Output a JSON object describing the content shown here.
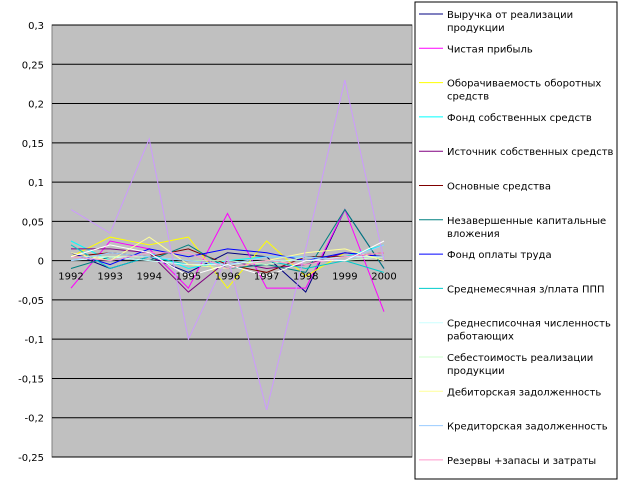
{
  "chart_data": {
    "type": "line",
    "title": "",
    "xlabel": "",
    "ylabel": "",
    "x": [
      "1992",
      "1993",
      "1994",
      "1995",
      "1996",
      "1997",
      "1998",
      "1999",
      "2000"
    ],
    "ylim": [
      -0.25,
      0.3
    ],
    "yticks": [
      "0,3",
      "0,25",
      "0,2",
      "0,15",
      "0,1",
      "0,05",
      "0",
      "-0,05",
      "-0,1",
      "-0,15",
      "-0,2",
      "-0,25"
    ],
    "ytick_values": [
      0.3,
      0.25,
      0.2,
      0.15,
      0.1,
      0.05,
      0,
      -0.05,
      -0.1,
      -0.15,
      -0.2,
      -0.25
    ],
    "grid": "horizontal",
    "plot_background": "#c0c0c0",
    "legend_position": "right",
    "series": [
      {
        "name": "Выручка от реализации продукции",
        "color": "#000080",
        "values": [
          0.01,
          -0.01,
          0.005,
          -0.015,
          0.01,
          0.005,
          -0.04,
          0.065,
          -0.01
        ]
      },
      {
        "name": "Чистая прибыль",
        "color": "#ff00ff",
        "values": [
          -0.035,
          0.025,
          0.015,
          -0.035,
          0.06,
          -0.035,
          -0.035,
          0.065,
          -0.065
        ]
      },
      {
        "name": "Оборачиваемость оборотных средств",
        "color": "#ffff00",
        "values": [
          0.005,
          0.03,
          0.02,
          0.03,
          -0.035,
          0.025,
          -0.02,
          0.01,
          0.005
        ]
      },
      {
        "name": "Фонд собственных средств",
        "color": "#00ffff",
        "values": [
          0.025,
          0.0,
          0.01,
          -0.01,
          0.0,
          0.005,
          0.005,
          0.005,
          0.02
        ]
      },
      {
        "name": "Источник собственных средств",
        "color": "#800080",
        "values": [
          0.015,
          0.015,
          0.01,
          -0.04,
          0.0,
          -0.01,
          -0.005,
          0.01,
          0.005
        ]
      },
      {
        "name": "Основные средства",
        "color": "#800000",
        "values": [
          0.005,
          0.01,
          0.005,
          0.015,
          -0.005,
          -0.015,
          0.005,
          0.005,
          0.01
        ]
      },
      {
        "name": "Незавершенные капитальные вложения",
        "color": "#008080",
        "values": [
          -0.01,
          0.005,
          0.0,
          0.02,
          -0.01,
          -0.005,
          -0.015,
          0.065,
          -0.01
        ]
      },
      {
        "name": "Фонд оплаты труда",
        "color": "#0000ff",
        "values": [
          0.01,
          -0.005,
          0.015,
          0.005,
          0.015,
          0.01,
          0.0,
          0.01,
          0.005
        ]
      },
      {
        "name": "Среднемесячная з/плата ППП",
        "color": "#00cccc",
        "values": [
          0.02,
          -0.01,
          0.005,
          -0.005,
          -0.01,
          0.0,
          -0.01,
          0.0,
          -0.015
        ]
      },
      {
        "name": "Среднесписочная численность работающих",
        "color": "#ccffff",
        "values": [
          0.0,
          0.005,
          0.0,
          -0.005,
          -0.005,
          0.0,
          0.0,
          0.005,
          0.005
        ]
      },
      {
        "name": "Себестоимость реализации продукции",
        "color": "#ccffcc",
        "values": [
          0.005,
          0.005,
          0.005,
          0.0,
          0.0,
          -0.005,
          0.005,
          0.0,
          0.005
        ]
      },
      {
        "name": "Дебиторская задолженность",
        "color": "#ffff99",
        "values": [
          0.01,
          0.0,
          0.03,
          -0.005,
          -0.01,
          0.0,
          0.01,
          0.015,
          0.0
        ]
      },
      {
        "name": "Кредиторская задолженность",
        "color": "#99ccff",
        "values": [
          0.0,
          0.01,
          0.005,
          0.0,
          -0.005,
          0.005,
          0.005,
          0.0,
          0.02
        ]
      },
      {
        "name": "Резервы +запасы и затраты",
        "color": "#ff99cc",
        "values": [
          0.005,
          0.0,
          0.01,
          0.01,
          -0.01,
          0.0,
          -0.005,
          0.005,
          0.01
        ]
      },
      {
        "name": "",
        "color": "#cc99ff",
        "values": [
          0.065,
          0.035,
          0.155,
          -0.1,
          0.005,
          -0.19,
          0.015,
          0.23,
          0.0
        ]
      },
      {
        "name": "",
        "color": "#ffffff",
        "values": [
          0.005,
          0.02,
          0.01,
          -0.02,
          -0.005,
          -0.02,
          0.0,
          0.0,
          0.025
        ]
      }
    ]
  }
}
